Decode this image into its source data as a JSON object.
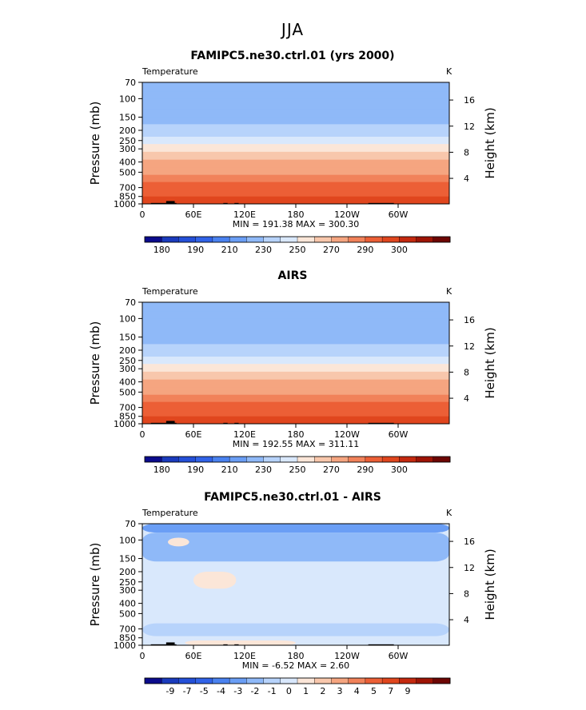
{
  "figure_title": "JJA",
  "colors": {
    "temperature_palette": [
      "#0b0b8c",
      "#1a3bbd",
      "#2450d8",
      "#3163e8",
      "#4a82f0",
      "#6a9ef5",
      "#8fb9f8",
      "#b7d3fb",
      "#d9e8fc",
      "#fbe6d8",
      "#f8c7ac",
      "#f5a580",
      "#f1825a",
      "#ec5f36",
      "#e0461e",
      "#c4290f",
      "#9e1405",
      "#6d0603"
    ],
    "difference_palette": [
      "#0b0b8c",
      "#1a3bbd",
      "#2450d8",
      "#3163e8",
      "#4a82f0",
      "#6a9ef5",
      "#8fb9f8",
      "#b7d3fb",
      "#d9e8fc",
      "#fbe6d8",
      "#f8c7ac",
      "#f5a580",
      "#f1825a",
      "#ec5f36",
      "#e0461e",
      "#c4290f",
      "#9e1405",
      "#6d0603"
    ],
    "topography": "#000000"
  },
  "chart_data": [
    {
      "type": "heatmap",
      "title": "FAMIPC5.ne30.ctrl.01 (yrs 2000)",
      "variable_label": "Temperature",
      "units_label": "K",
      "ylabel": "Pressure  (mb)",
      "y2label": "Height  (km)",
      "x_ticks": [
        "0",
        "60E",
        "120E",
        "180",
        "120W",
        "60W"
      ],
      "x_tick_lon": [
        0,
        60,
        120,
        180,
        240,
        300
      ],
      "xlim": [
        0,
        360
      ],
      "y_ticks": [
        "70",
        "100",
        "150",
        "200",
        "250",
        "300",
        "400",
        "500",
        "700",
        "850",
        "1000"
      ],
      "y_tick_pressure": [
        70,
        100,
        150,
        200,
        250,
        300,
        400,
        500,
        700,
        850,
        1000
      ],
      "ylim_pressure": [
        70,
        1000
      ],
      "log_pressure_axis": true,
      "y2_ticks": [
        "4",
        "8",
        "12",
        "16"
      ],
      "y2_tick_km": [
        4,
        8,
        12,
        16
      ],
      "stats_text": "MIN = 191.38   MAX = 300.30",
      "min": 191.38,
      "max": 300.3,
      "colorbar_labels": [
        "180",
        "190",
        "210",
        "230",
        "250",
        "270",
        "290",
        "300"
      ],
      "colorbar_levels": [
        180,
        185,
        190,
        200,
        210,
        220,
        230,
        240,
        250,
        260,
        270,
        280,
        290,
        295,
        300
      ],
      "level_temperatures_k": [
        210,
        210,
        210,
        214,
        218,
        222,
        229,
        238,
        248,
        256,
        262,
        268,
        274,
        280,
        285,
        290
      ]
    },
    {
      "type": "heatmap",
      "title": "AIRS",
      "variable_label": "Temperature",
      "units_label": "K",
      "ylabel": "Pressure  (mb)",
      "y2label": "Height  (km)",
      "x_ticks": [
        "0",
        "60E",
        "120E",
        "180",
        "120W",
        "60W"
      ],
      "x_tick_lon": [
        0,
        60,
        120,
        180,
        240,
        300
      ],
      "xlim": [
        0,
        360
      ],
      "y_ticks": [
        "70",
        "100",
        "150",
        "200",
        "250",
        "300",
        "400",
        "500",
        "700",
        "850",
        "1000"
      ],
      "y_tick_pressure": [
        70,
        100,
        150,
        200,
        250,
        300,
        400,
        500,
        700,
        850,
        1000
      ],
      "ylim_pressure": [
        70,
        1000
      ],
      "log_pressure_axis": true,
      "y2_ticks": [
        "4",
        "8",
        "12",
        "16"
      ],
      "y2_tick_km": [
        4,
        8,
        12,
        16
      ],
      "stats_text": "MIN = 192.55   MAX = 311.11",
      "min": 192.55,
      "max": 311.11,
      "colorbar_labels": [
        "180",
        "190",
        "210",
        "230",
        "250",
        "270",
        "290",
        "300"
      ],
      "colorbar_levels": [
        180,
        185,
        190,
        200,
        210,
        220,
        230,
        240,
        250,
        260,
        270,
        280,
        290,
        295,
        300
      ],
      "level_temperatures_k": [
        210,
        210,
        210,
        214,
        218,
        222,
        229,
        238,
        248,
        256,
        262,
        268,
        274,
        280,
        286,
        292
      ]
    },
    {
      "type": "heatmap",
      "title": "FAMIPC5.ne30.ctrl.01 - AIRS",
      "variable_label": "Temperature",
      "units_label": "K",
      "ylabel": "Pressure  (mb)",
      "y2label": "Height  (km)",
      "x_ticks": [
        "0",
        "60E",
        "120E",
        "180",
        "120W",
        "60W"
      ],
      "x_tick_lon": [
        0,
        60,
        120,
        180,
        240,
        300
      ],
      "xlim": [
        0,
        360
      ],
      "y_ticks": [
        "70",
        "100",
        "150",
        "200",
        "250",
        "300",
        "400",
        "500",
        "700",
        "850",
        "1000"
      ],
      "y_tick_pressure": [
        70,
        100,
        150,
        200,
        250,
        300,
        400,
        500,
        700,
        850,
        1000
      ],
      "ylim_pressure": [
        70,
        1000
      ],
      "log_pressure_axis": true,
      "y2_ticks": [
        "4",
        "8",
        "12",
        "16"
      ],
      "y2_tick_km": [
        4,
        8,
        12,
        16
      ],
      "stats_text": "MIN =  -6.52   MAX =    2.60",
      "min": -6.52,
      "max": 2.6,
      "colorbar_labels": [
        "-9",
        "-7",
        "-5",
        "-4",
        "-3",
        "-2",
        "-1",
        "0",
        "1",
        "2",
        "3",
        "4",
        "5",
        "7",
        "9"
      ],
      "colorbar_levels": [
        -9,
        -7,
        -5,
        -4,
        -3,
        -2,
        -1,
        0,
        1,
        2,
        3,
        4,
        5,
        7,
        9
      ],
      "background_difference_k": -0.5,
      "regions": [
        {
          "description": "upper-level cold band",
          "lon": [
            0,
            360
          ],
          "pressure": [
            70,
            85
          ],
          "value": -3.5
        },
        {
          "description": "cold region near 100 mb",
          "lon": [
            0,
            360
          ],
          "pressure": [
            85,
            160
          ],
          "value": -2.5
        },
        {
          "description": "warm spot near 100 mb",
          "lon": [
            30,
            55
          ],
          "pressure": [
            95,
            115
          ],
          "value": 0.5
        },
        {
          "description": "warm patch near 250 mb",
          "lon": [
            60,
            110
          ],
          "pressure": [
            200,
            290
          ],
          "value": 0.5
        },
        {
          "description": "cold band near 700 mb",
          "lon": [
            0,
            360
          ],
          "pressure": [
            620,
            820
          ],
          "value": -1.5
        },
        {
          "description": "warm near-surface layer",
          "lon": [
            50,
            180
          ],
          "pressure": [
            900,
            1000
          ],
          "value": 0.5
        }
      ]
    }
  ]
}
